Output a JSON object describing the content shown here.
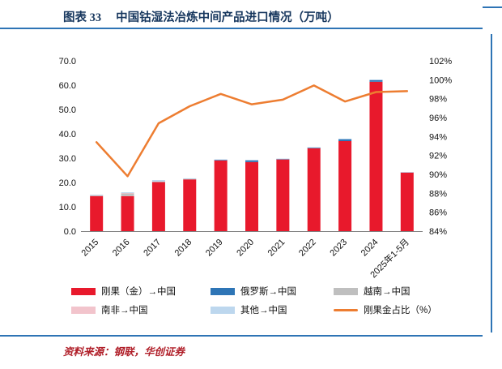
{
  "page": {
    "title_prefix": "图表 33",
    "title_text": "中国钴湿法冶炼中间产品进口情况（万吨）",
    "source_text": "资料来源：钢联，华创证券",
    "accent_blue": "#2E74B5",
    "title_color": "#17375E",
    "source_color": "#B01E28"
  },
  "chart_data": {
    "type": "bar",
    "subtype": "stacked-bar-with-line",
    "title": "中国钴湿法冶炼中间产品进口情况（万吨）",
    "categories": [
      "2015",
      "2016",
      "2017",
      "2018",
      "2019",
      "2020",
      "2021",
      "2022",
      "2023",
      "2024",
      "2025年1-5月"
    ],
    "series": [
      {
        "name": "刚果（金）→中国",
        "type": "bar",
        "axis": "left",
        "color": "#E8192C",
        "values": [
          14.4,
          14.4,
          20.2,
          21.3,
          29.2,
          28.4,
          29.6,
          34.2,
          37.0,
          61.4,
          24.2
        ]
      },
      {
        "name": "俄罗斯→中国",
        "type": "bar",
        "axis": "left",
        "color": "#2E75B6",
        "values": [
          0.0,
          0.0,
          0.0,
          0.0,
          0.1,
          0.8,
          0.1,
          0.1,
          0.9,
          0.8,
          0.0
        ]
      },
      {
        "name": "越南→中国",
        "type": "bar",
        "axis": "left",
        "color": "#BFBFBF",
        "values": [
          0.4,
          1.1,
          0.2,
          0.2,
          0.0,
          0.0,
          0.0,
          0.0,
          0.0,
          0.0,
          0.0
        ]
      },
      {
        "name": "南非→中国",
        "type": "bar",
        "axis": "left",
        "color": "#F2C4CC",
        "values": [
          0.1,
          0.2,
          0.0,
          0.0,
          0.0,
          0.0,
          0.0,
          0.0,
          0.0,
          0.0,
          0.0
        ]
      },
      {
        "name": "其他→中国",
        "type": "bar",
        "axis": "left",
        "color": "#BDD7EE",
        "values": [
          0.1,
          0.3,
          0.6,
          0.2,
          0.2,
          0.1,
          0.1,
          0.2,
          0.1,
          0.1,
          0.1
        ]
      },
      {
        "name": "刚果金占比（%）",
        "type": "line",
        "axis": "right",
        "color": "#ED7D31",
        "values": [
          93.4,
          89.8,
          95.4,
          97.2,
          98.5,
          97.4,
          97.9,
          99.4,
          97.7,
          98.7,
          98.8
        ]
      }
    ],
    "left_axis": {
      "min": 0,
      "max": 70,
      "step": 10,
      "tick_labels": [
        "0.0",
        "10.0",
        "20.0",
        "30.0",
        "40.0",
        "50.0",
        "60.0",
        "70.0"
      ]
    },
    "right_axis": {
      "min": 84,
      "max": 102,
      "step": 2,
      "tick_labels": [
        "84%",
        "86%",
        "88%",
        "90%",
        "92%",
        "94%",
        "96%",
        "98%",
        "100%",
        "102%"
      ]
    },
    "grid": false,
    "legend_position": "bottom",
    "legend_rows": [
      [
        "刚果（金）→中国",
        "俄罗斯→中国",
        "越南→中国"
      ],
      [
        "南非→中国",
        "其他→中国",
        "刚果金占比（%）"
      ]
    ]
  }
}
